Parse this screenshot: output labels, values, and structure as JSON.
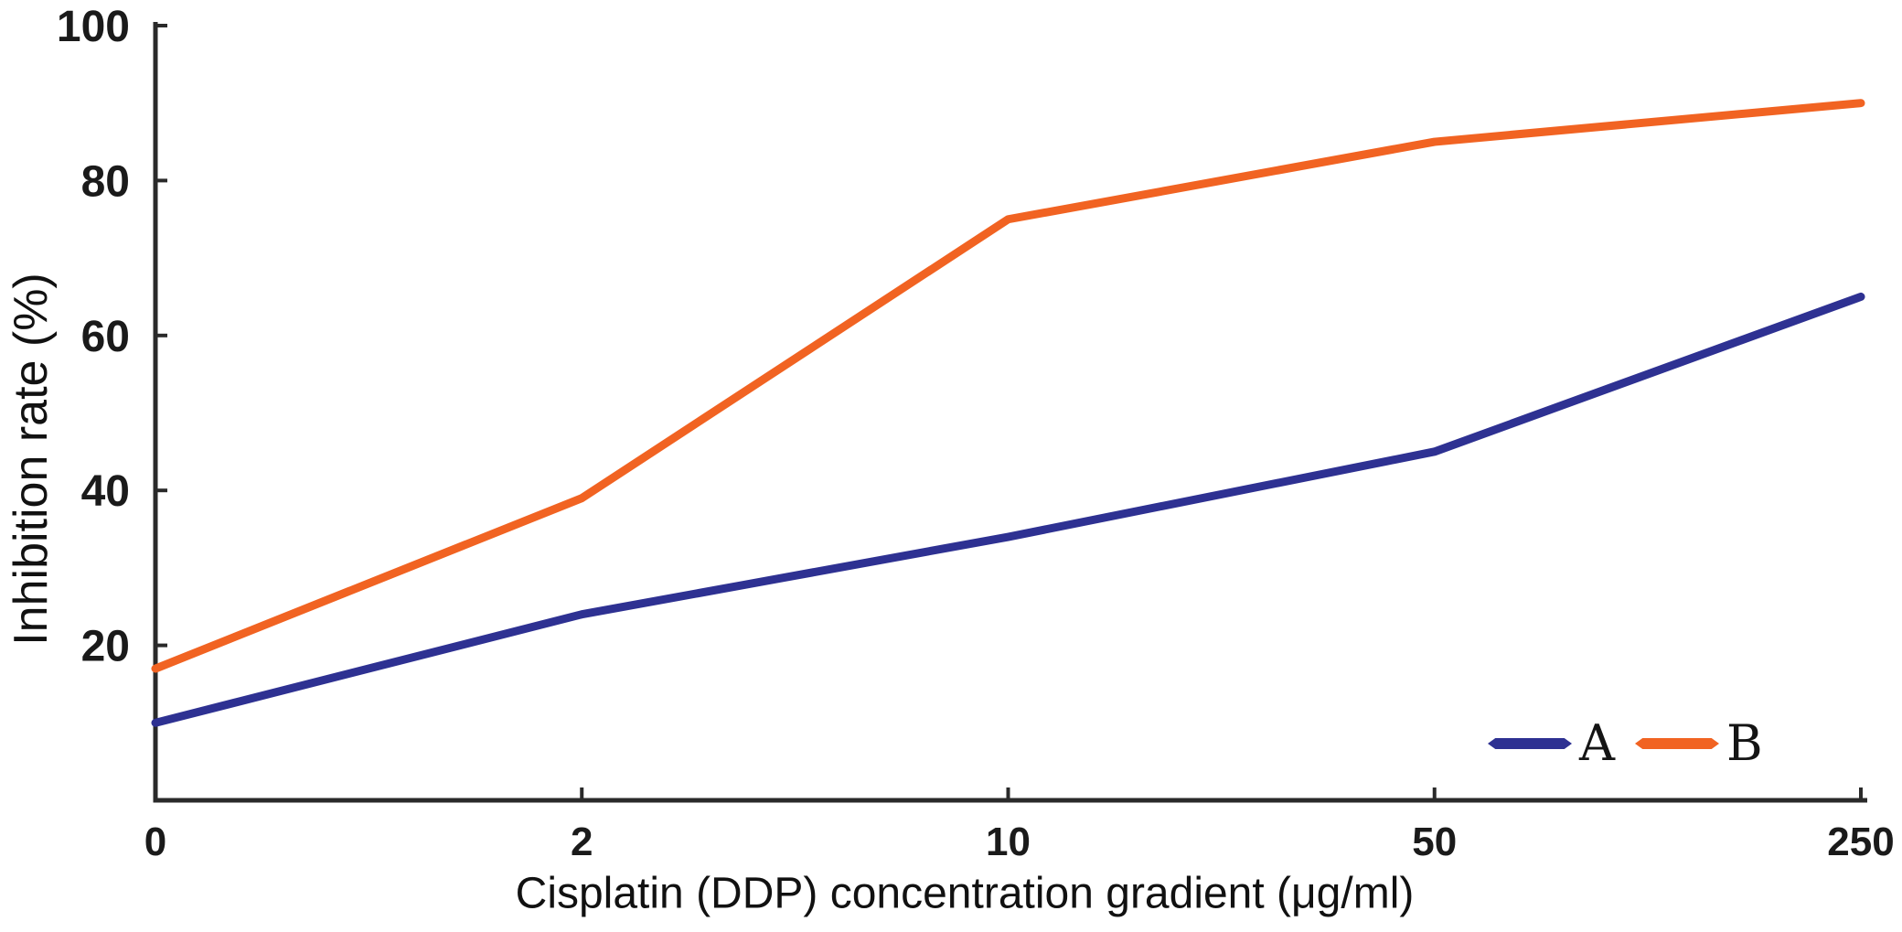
{
  "figure": {
    "background": "#ffffff",
    "axis_color": "#2a2a2a",
    "text_color": "#1a1a1a"
  },
  "chart_data": {
    "type": "line",
    "title": "",
    "xlabel": "Cisplatin (DDP) concentration gradient (μg/ml)",
    "ylabel": "Inhibition rate (%)",
    "categories": [
      "0",
      "2",
      "10",
      "50",
      "250"
    ],
    "y_ticks": [
      20,
      40,
      60,
      80,
      100
    ],
    "ylim": [
      0,
      100
    ],
    "grid": false,
    "legend_position": "inside-bottom-right",
    "series": [
      {
        "name": "A",
        "color": "#2e3192",
        "values": [
          10,
          24,
          34,
          45,
          65
        ]
      },
      {
        "name": "B",
        "color": "#f16322",
        "values": [
          17,
          39,
          75,
          85,
          90
        ]
      }
    ]
  }
}
